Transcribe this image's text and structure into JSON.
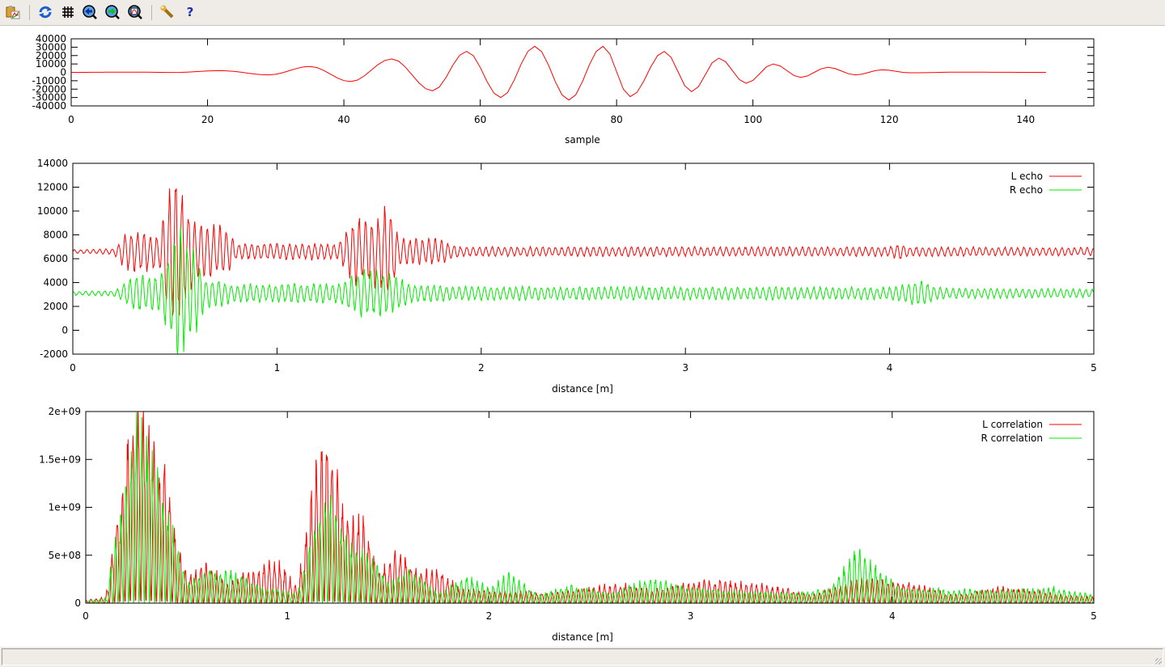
{
  "toolbar": {
    "items": [
      {
        "icon": "copy-to-clipboard-icon"
      },
      {
        "icon": "replot-icon"
      },
      {
        "icon": "grid-icon"
      },
      {
        "icon": "zoom-previous-icon"
      },
      {
        "icon": "zoom-next-icon"
      },
      {
        "icon": "autoscale-icon"
      },
      {
        "icon": "settings-wrench-icon"
      },
      {
        "icon": "help-icon",
        "glyph": "?"
      }
    ]
  },
  "chart_data": [
    {
      "type": "line",
      "xlabel": "sample",
      "ylabel": "",
      "xlim": [
        0,
        150
      ],
      "ylim": [
        -40000,
        40000
      ],
      "xticks": [
        "0",
        "20",
        "40",
        "60",
        "80",
        "100",
        "120",
        "140"
      ],
      "yticks": [
        "-40000",
        "-30000",
        "-20000",
        "-10000",
        "0",
        "10000",
        "20000",
        "30000",
        "40000"
      ],
      "grid": false,
      "series": [
        {
          "color": "#ff0000",
          "points": [
            [
              0,
              0
            ],
            [
              9,
              300
            ],
            [
              15,
              -100
            ],
            [
              22,
              2000
            ],
            [
              29,
              -3000
            ],
            [
              35,
              7000
            ],
            [
              41,
              -11000
            ],
            [
              47,
              16000
            ],
            [
              53,
              -22000
            ],
            [
              58,
              25000
            ],
            [
              63,
              -30000
            ],
            [
              68,
              31000
            ],
            [
              73,
              -33000
            ],
            [
              78,
              31000
            ],
            [
              82,
              -29000
            ],
            [
              87,
              25000
            ],
            [
              91,
              -23000
            ],
            [
              95,
              17000
            ],
            [
              99,
              -13000
            ],
            [
              103,
              10000
            ],
            [
              107,
              -6000
            ],
            [
              111,
              6000
            ],
            [
              115,
              -3000
            ],
            [
              119,
              3000
            ],
            [
              123,
              -500
            ],
            [
              130,
              200
            ],
            [
              143,
              0
            ]
          ]
        }
      ]
    },
    {
      "type": "line",
      "xlabel": "distance [m]",
      "ylabel": "",
      "xlim": [
        0,
        5
      ],
      "ylim": [
        -2000,
        14000
      ],
      "xticks": [
        "0",
        "1",
        "2",
        "3",
        "4",
        "5"
      ],
      "yticks": [
        "-2000",
        "0",
        "2000",
        "4000",
        "6000",
        "8000",
        "10000",
        "12000",
        "14000"
      ],
      "grid": false,
      "legend_position": "top-right",
      "series": [
        {
          "name": "L echo",
          "color": "#ff0000",
          "baseline": 6600,
          "amplitude_envelope": [
            [
              0,
              150
            ],
            [
              0.2,
              200
            ],
            [
              0.27,
              1500
            ],
            [
              0.35,
              1500
            ],
            [
              0.42,
              1200
            ],
            [
              0.5,
              6500
            ],
            [
              0.55,
              3500
            ],
            [
              0.62,
              2000
            ],
            [
              0.75,
              1800
            ],
            [
              0.8,
              600
            ],
            [
              1.3,
              600
            ],
            [
              1.37,
              2400
            ],
            [
              1.5,
              2600
            ],
            [
              1.55,
              3600
            ],
            [
              1.6,
              1000
            ],
            [
              1.8,
              900
            ],
            [
              1.9,
              350
            ],
            [
              4.0,
              350
            ],
            [
              4.05,
              600
            ],
            [
              4.1,
              350
            ],
            [
              5,
              300
            ]
          ]
        },
        {
          "name": "R echo",
          "color": "#00ee00",
          "baseline": 3100,
          "amplitude_envelope": [
            [
              0,
              150
            ],
            [
              0.2,
              200
            ],
            [
              0.33,
              1500
            ],
            [
              0.42,
              1300
            ],
            [
              0.52,
              5000
            ],
            [
              0.58,
              3500
            ],
            [
              0.65,
              1200
            ],
            [
              0.8,
              700
            ],
            [
              1.3,
              700
            ],
            [
              1.42,
              1800
            ],
            [
              1.55,
              1500
            ],
            [
              1.65,
              700
            ],
            [
              1.9,
              500
            ],
            [
              4.0,
              450
            ],
            [
              4.15,
              1000
            ],
            [
              4.25,
              400
            ],
            [
              5,
              300
            ]
          ]
        }
      ]
    },
    {
      "type": "line",
      "xlabel": "distance [m]",
      "ylabel": "",
      "xlim": [
        0,
        5
      ],
      "ylim": [
        0,
        2000000000
      ],
      "xticks": [
        "0",
        "1",
        "2",
        "3",
        "4",
        "5"
      ],
      "yticks": [
        "0",
        "5e+08",
        "1e+09",
        "1.5e+09",
        "2e+09"
      ],
      "grid": false,
      "legend_position": "top-right",
      "series": [
        {
          "name": "L correlation",
          "color": "#ff0000",
          "amplitude_envelope": [
            [
              0,
              30000000.0
            ],
            [
              0.1,
              60000000.0
            ],
            [
              0.15,
              800000000.0
            ],
            [
              0.2,
              1500000000.0
            ],
            [
              0.25,
              2000000000.0
            ],
            [
              0.3,
              2000000000.0
            ],
            [
              0.35,
              1400000000.0
            ],
            [
              0.4,
              1500000000.0
            ],
            [
              0.45,
              600000000.0
            ],
            [
              0.5,
              300000000.0
            ],
            [
              0.6,
              400000000.0
            ],
            [
              0.7,
              200000000.0
            ],
            [
              0.8,
              300000000.0
            ],
            [
              0.95,
              450000000.0
            ],
            [
              1.05,
              150000000.0
            ],
            [
              1.15,
              1500000000.0
            ],
            [
              1.2,
              1700000000.0
            ],
            [
              1.3,
              850000000.0
            ],
            [
              1.37,
              900000000.0
            ],
            [
              1.45,
              300000000.0
            ],
            [
              1.55,
              550000000.0
            ],
            [
              1.65,
              300000000.0
            ],
            [
              1.75,
              350000000.0
            ],
            [
              1.85,
              150000000.0
            ],
            [
              2.0,
              120000000.0
            ],
            [
              2.3,
              100000000.0
            ],
            [
              2.65,
              200000000.0
            ],
            [
              2.8,
              130000000.0
            ],
            [
              3.1,
              230000000.0
            ],
            [
              3.4,
              180000000.0
            ],
            [
              3.6,
              80000000.0
            ],
            [
              3.85,
              250000000.0
            ],
            [
              4.1,
              200000000.0
            ],
            [
              4.3,
              80000000.0
            ],
            [
              4.55,
              160000000.0
            ],
            [
              4.8,
              100000000.0
            ],
            [
              5,
              60000000.0
            ]
          ]
        },
        {
          "name": "R correlation",
          "color": "#00ee00",
          "amplitude_envelope": [
            [
              0,
              20000000.0
            ],
            [
              0.1,
              50000000.0
            ],
            [
              0.15,
              700000000.0
            ],
            [
              0.2,
              1200000000.0
            ],
            [
              0.25,
              1850000000.0
            ],
            [
              0.3,
              1600000000.0
            ],
            [
              0.35,
              1400000000.0
            ],
            [
              0.45,
              600000000.0
            ],
            [
              0.5,
              200000000.0
            ],
            [
              0.6,
              350000000.0
            ],
            [
              0.75,
              300000000.0
            ],
            [
              0.9,
              150000000.0
            ],
            [
              1.05,
              100000000.0
            ],
            [
              1.15,
              900000000.0
            ],
            [
              1.2,
              1100000000.0
            ],
            [
              1.3,
              600000000.0
            ],
            [
              1.4,
              550000000.0
            ],
            [
              1.5,
              200000000.0
            ],
            [
              1.6,
              350000000.0
            ],
            [
              1.75,
              100000000.0
            ],
            [
              1.9,
              280000000.0
            ],
            [
              2.0,
              150000000.0
            ],
            [
              2.1,
              300000000.0
            ],
            [
              2.25,
              80000000.0
            ],
            [
              2.4,
              180000000.0
            ],
            [
              2.6,
              100000000.0
            ],
            [
              2.8,
              250000000.0
            ],
            [
              3.0,
              150000000.0
            ],
            [
              3.2,
              130000000.0
            ],
            [
              3.5,
              100000000.0
            ],
            [
              3.7,
              150000000.0
            ],
            [
              3.82,
              550000000.0
            ],
            [
              3.95,
              300000000.0
            ],
            [
              4.05,
              150000000.0
            ],
            [
              4.5,
              130000000.0
            ],
            [
              4.8,
              160000000.0
            ],
            [
              5,
              80000000.0
            ]
          ]
        }
      ]
    }
  ]
}
